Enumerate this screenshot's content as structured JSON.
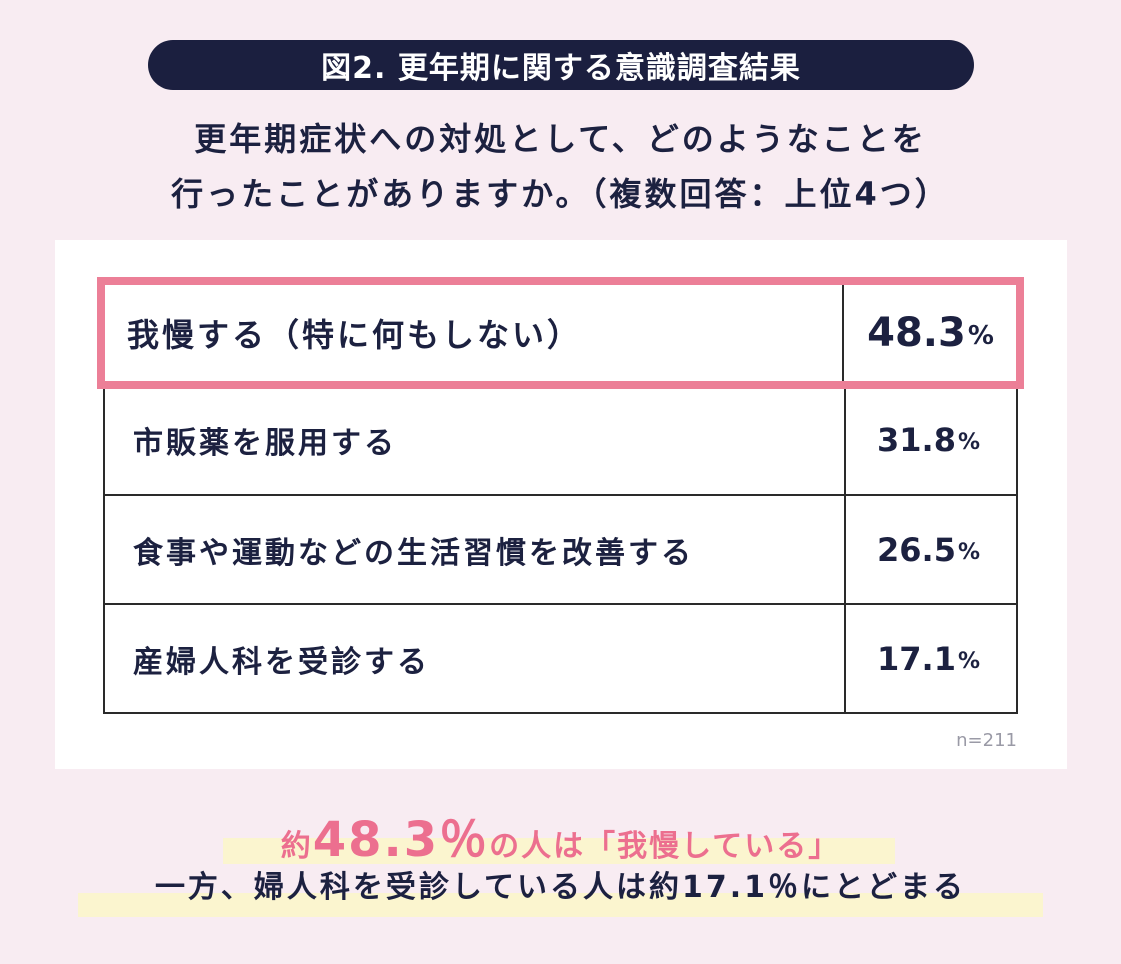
{
  "title": "図2. 更年期に関する意識調査結果",
  "question_line1": "更年期症状への対処として、どのようなことを",
  "question_line2": "行ったことがありますか。（複数回答：上位4つ）",
  "chart_data": {
    "type": "table",
    "highlight_color": "#ec7f97",
    "rows": [
      {
        "label": "我慢する（特に何もしない）",
        "value": 48.3,
        "value_text": "48.3",
        "unit": "%"
      },
      {
        "label": "市販薬を服用する",
        "value": 31.8,
        "value_text": "31.8",
        "unit": "%"
      },
      {
        "label": "食事や運動などの生活習慣を改善する",
        "value": 26.5,
        "value_text": "26.5",
        "unit": "%"
      },
      {
        "label": "産婦人科を受診する",
        "value": 17.1,
        "value_text": "17.1",
        "unit": "%"
      }
    ],
    "note": "n=211"
  },
  "conclusion": {
    "line1_prefix": "約",
    "line1_value": "48.3％",
    "line1_suffix": "の人は「我慢している」",
    "line2": "一方、婦人科を受診している人は約17.1％にとどまる"
  },
  "colors": {
    "background": "#f8ecf2",
    "navy": "#1b1f3f",
    "pink": "#ec6f8f",
    "highlight_band": "#fbf5cf"
  }
}
